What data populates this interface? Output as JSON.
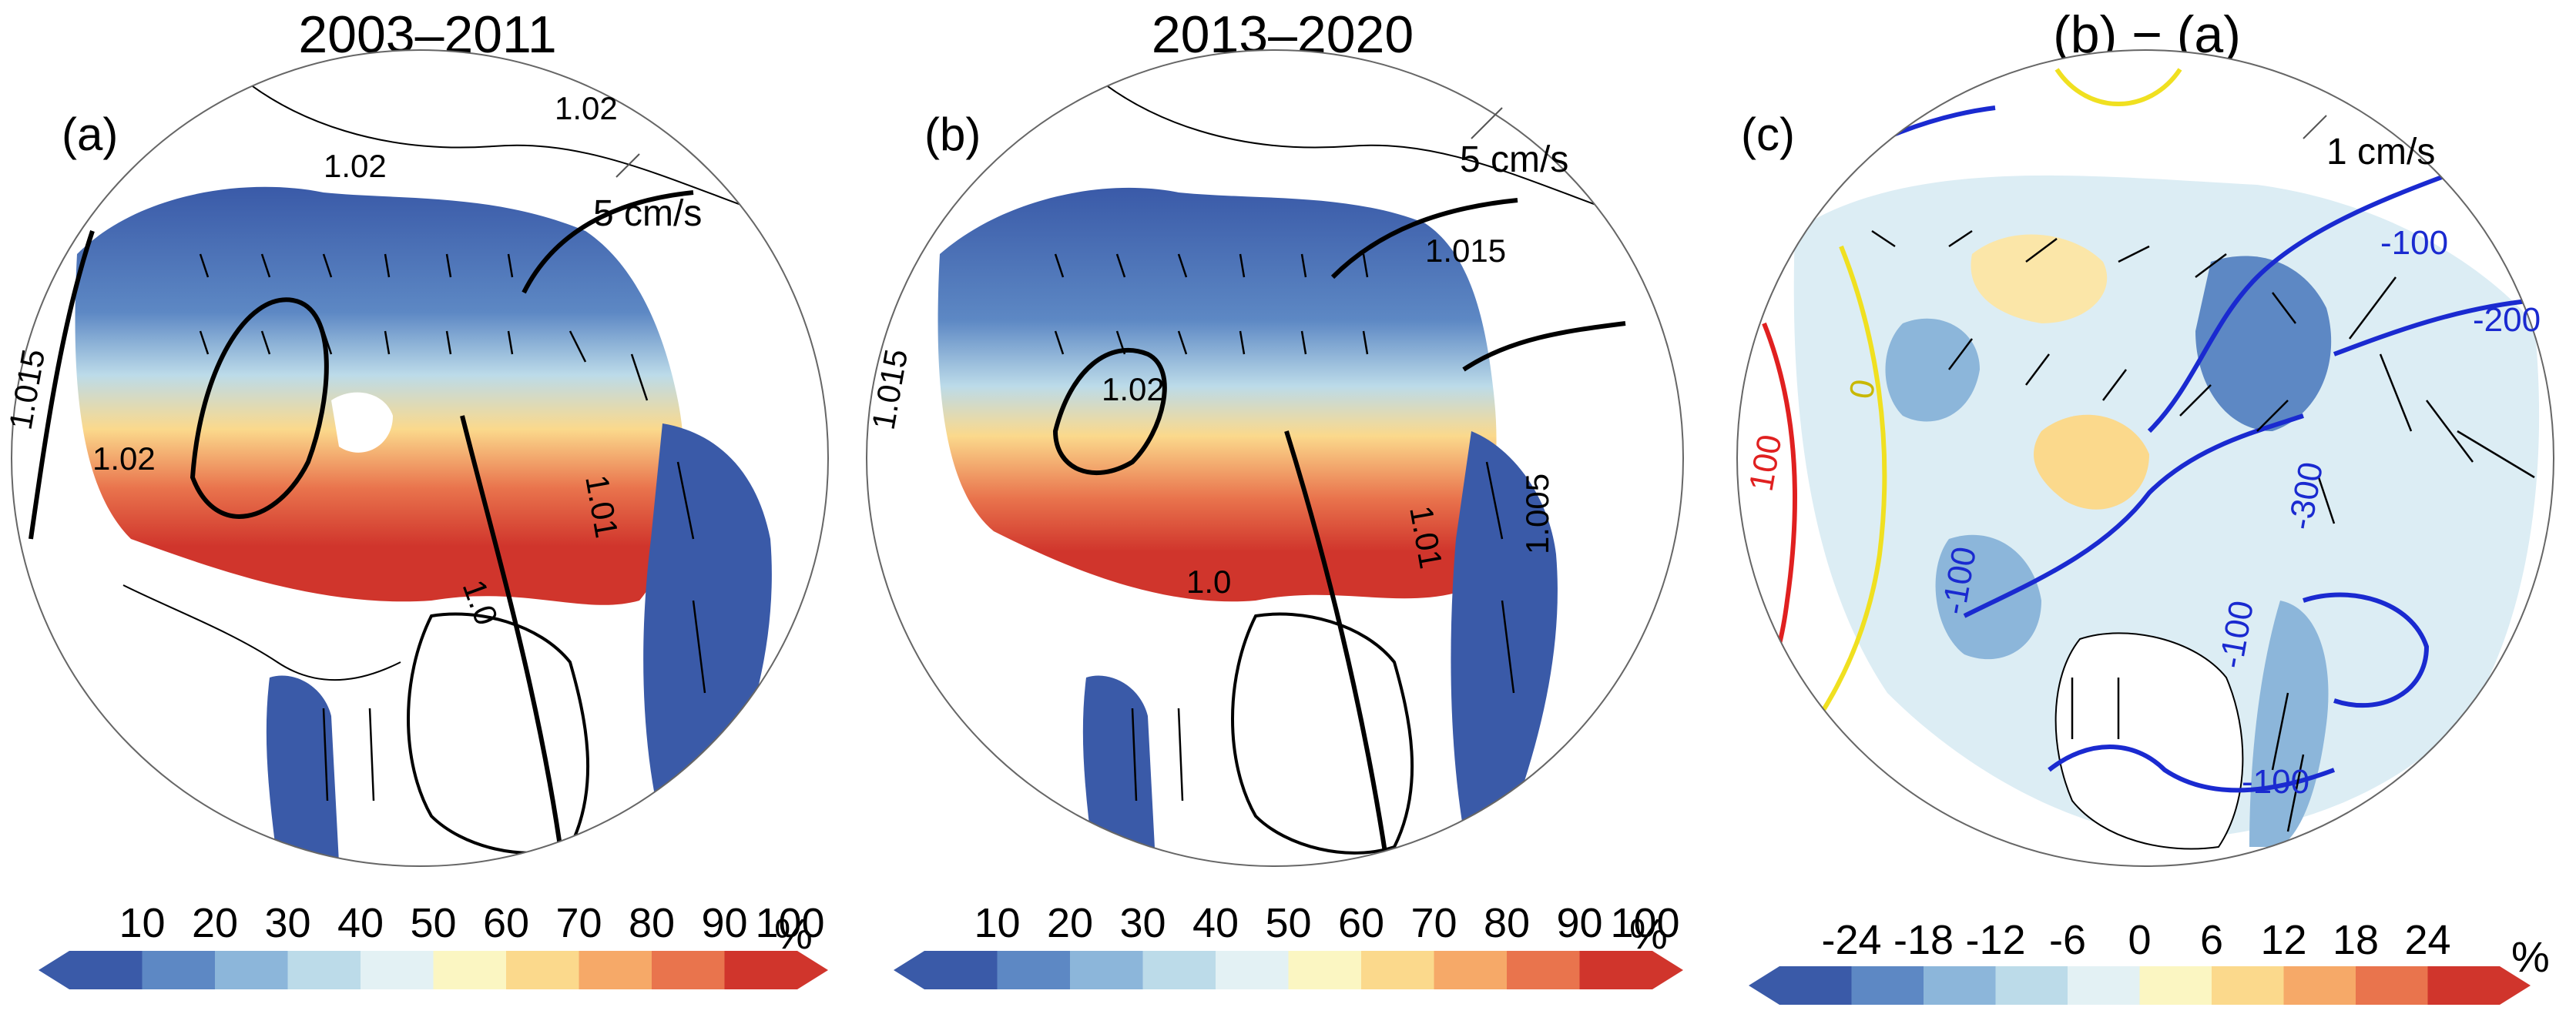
{
  "panels": [
    {
      "id": "a",
      "title": "2003–2011",
      "label": "(a)",
      "vector_label": "5 cm/s",
      "contour_labels": [
        "1.02",
        "1.02",
        "1.02",
        "1.015",
        "1.01",
        "1.0"
      ],
      "colorbar": {
        "ticks": [
          "10",
          "20",
          "30",
          "40",
          "50",
          "60",
          "70",
          "80",
          "90",
          "100"
        ],
        "unit": "%",
        "colors": [
          "#3a5aa8",
          "#5d88c4",
          "#8cb6da",
          "#bcdbe9",
          "#e3f1f4",
          "#fbf6c2",
          "#fbd98c",
          "#f6a968",
          "#e9744d",
          "#d0352c"
        ]
      }
    },
    {
      "id": "b",
      "title": "2013–2020",
      "label": "(b)",
      "vector_label": "5 cm/s",
      "contour_labels": [
        "1.015",
        "1.02",
        "1.015",
        "1.01",
        "1.005",
        "1.0"
      ],
      "colorbar": {
        "ticks": [
          "10",
          "20",
          "30",
          "40",
          "50",
          "60",
          "70",
          "80",
          "90",
          "100"
        ],
        "unit": "%",
        "colors": [
          "#3a5aa8",
          "#5d88c4",
          "#8cb6da",
          "#bcdbe9",
          "#e3f1f4",
          "#fbf6c2",
          "#fbd98c",
          "#f6a968",
          "#e9744d",
          "#d0352c"
        ]
      }
    },
    {
      "id": "c",
      "title": "(b) −  (a)",
      "label": "(c)",
      "vector_label": "1 cm/s",
      "contour_labels": [
        "-100",
        "-200",
        "100",
        "0",
        "-100",
        "-300",
        "-100",
        "-100"
      ],
      "colorbar": {
        "ticks": [
          "-24",
          "-18",
          "-12",
          "-6",
          "0",
          "6",
          "12",
          "18",
          "24"
        ],
        "unit": "%",
        "colors": [
          "#3a5aa8",
          "#5d88c4",
          "#8cb6da",
          "#bcdbe9",
          "#e3f1f4",
          "#fbf6c2",
          "#fbd98c",
          "#f6a968",
          "#e9744d",
          "#d0352c"
        ]
      }
    }
  ]
}
